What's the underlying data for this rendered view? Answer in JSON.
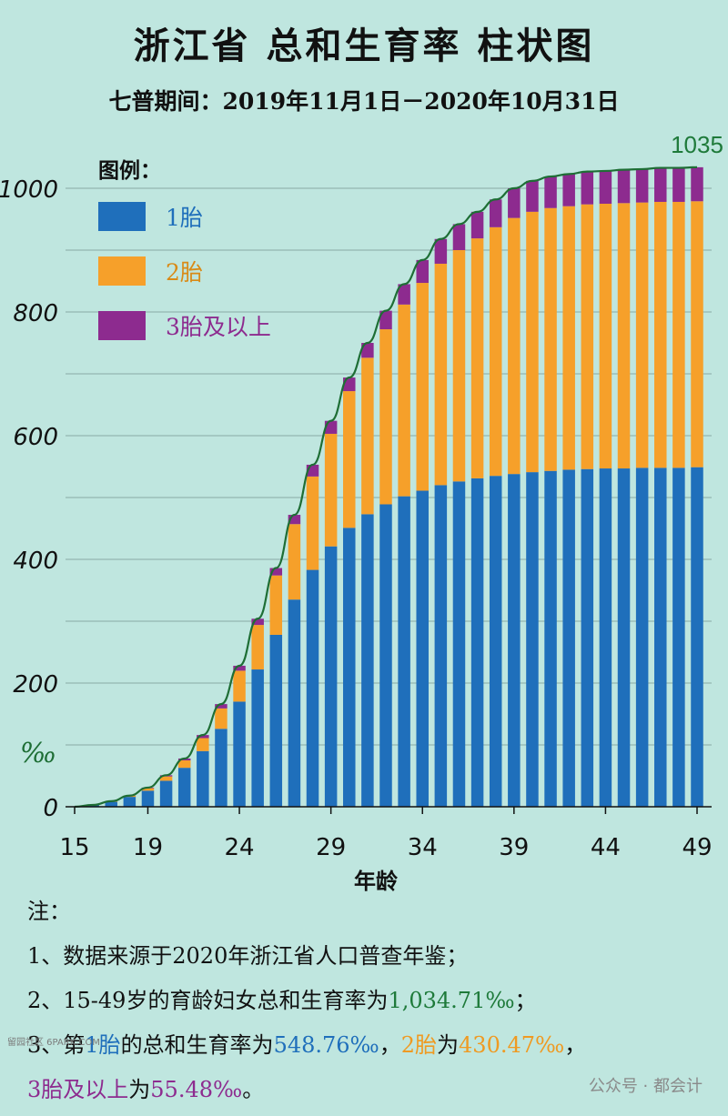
{
  "title": "浙江省 总和生育率 柱状图",
  "subtitle": "七普期间：2019年11月1日－2020年10月31日",
  "legend_title": "图例：",
  "notes": {
    "heading": "注：",
    "n1": "1、数据来源于2020年浙江省人口普查年鉴；",
    "n2_pre": "2、15-49岁的育龄妇女总和生育率为",
    "n2_val": "1,034.71‰",
    "n2_post": "；",
    "n3_pre": "3、第",
    "n3_a": "1胎",
    "n3_b": "的总和生育率为",
    "n3_c": "548.76‰",
    "n3_d": "，",
    "n3_e": "2胎",
    "n3_f": "为",
    "n3_g": "430.47‰",
    "n3_h": "，",
    "n4_a": "3胎及以上",
    "n4_b": "为",
    "n4_c": "55.48‰",
    "n4_d": "。"
  },
  "watermark": "公众号 · 都会计",
  "corner_mark": "留园社区 6PARK.COM",
  "colors": {
    "first": "#1f6fbb",
    "second": "#f6a02a",
    "third": "#8d2b8f",
    "curve": "#1e6e35",
    "background": "#bfe6df"
  },
  "chart_data": {
    "type": "bar",
    "stacked": true,
    "xlabel": "年龄",
    "ylabel": "‰",
    "ylim": [
      0,
      1000
    ],
    "yticks": [
      0,
      200,
      400,
      600,
      800,
      1000
    ],
    "xticks": [
      15,
      19,
      24,
      29,
      34,
      39,
      44,
      49
    ],
    "top_annotation": "1035",
    "grid": true,
    "legend_position": "top-left",
    "x": [
      15,
      16,
      17,
      18,
      19,
      20,
      21,
      22,
      23,
      24,
      25,
      26,
      27,
      28,
      29,
      30,
      31,
      32,
      33,
      34,
      35,
      36,
      37,
      38,
      39,
      40,
      41,
      42,
      43,
      44,
      45,
      46,
      47,
      48,
      49
    ],
    "series": [
      {
        "name": "1胎",
        "color": "#1f6fbb",
        "values": [
          0,
          3,
          8,
          16,
          26,
          42,
          63,
          90,
          126,
          170,
          222,
          278,
          335,
          383,
          421,
          451,
          473,
          489,
          502,
          511,
          520,
          526,
          531,
          535,
          538,
          541,
          543,
          545,
          546,
          547,
          547,
          548,
          548,
          548,
          549
        ]
      },
      {
        "name": "2胎",
        "color": "#f6a02a",
        "values": [
          0,
          0,
          1,
          2,
          4,
          7,
          12,
          21,
          33,
          50,
          72,
          96,
          122,
          151,
          182,
          221,
          253,
          283,
          310,
          336,
          358,
          374,
          388,
          402,
          414,
          421,
          425,
          426,
          428,
          428,
          429,
          429,
          430,
          430,
          430
        ]
      },
      {
        "name": "3胎及以上",
        "color": "#8d2b8f",
        "values": [
          0,
          0,
          0,
          0,
          1,
          2,
          3,
          5,
          7,
          8,
          10,
          12,
          15,
          19,
          21,
          22,
          24,
          30,
          33,
          37,
          40,
          42,
          43,
          45,
          48,
          50,
          51,
          52,
          53,
          53,
          54,
          54,
          55,
          55,
          55
        ]
      }
    ]
  }
}
